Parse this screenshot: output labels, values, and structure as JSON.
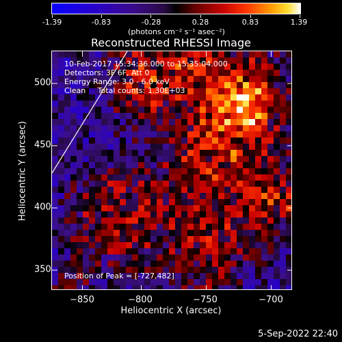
{
  "colorbar": {
    "ticks": [
      "-1.39",
      "-0.83",
      "-0.28",
      "0.28",
      "0.83",
      "1.39"
    ],
    "units": "(photons cm⁻² s⁻¹ asec⁻²)"
  },
  "title": "Reconstructed RHESSI Image",
  "info": {
    "time_range": "10-Feb-2017 15:34:36.000 to 15:35:04.000",
    "detectors": "Detectors: 3F 6F, Att 0",
    "energy": "Energy Range: 3.0 - 6.0 keV",
    "method": "Clean     Total counts: 1.30E+03"
  },
  "peak_position": "Position of Peak = [-727,482]",
  "axes": {
    "xlabel": "Heliocentric X (arcsec)",
    "ylabel": "Heliocentric Y (arcsec)",
    "xticks": [
      "−850",
      "−800",
      "−750",
      "−700"
    ],
    "yticks": [
      "500",
      "450",
      "400",
      "350"
    ]
  },
  "date_stamp": "5-Sep-2022 22:40",
  "colors": {
    "background": "#000000",
    "frame": "#ffffff",
    "limb_line": "#ffffff"
  }
}
